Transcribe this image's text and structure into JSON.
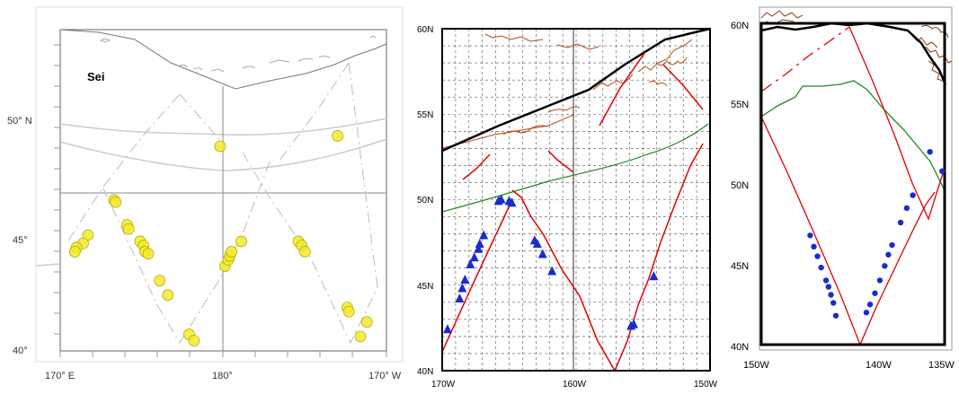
{
  "left_map": {
    "title": "Sei",
    "lat_labels": [
      "50° N",
      "45°",
      "40°"
    ],
    "lon_labels": [
      "170° E",
      "180°",
      "170° W"
    ],
    "colors": {
      "sighting": "#f2ea2e",
      "sighting_stroke": "#b9a900",
      "track": "#bbbbbb",
      "coast": "#777777"
    },
    "sightings": [
      {
        "lon": 179.8,
        "lat": 49.7
      },
      {
        "lon": -173.0,
        "lat": 50.2
      },
      {
        "lon": 173.3,
        "lat": 47.1
      },
      {
        "lon": 173.4,
        "lat": 47.0
      },
      {
        "lon": 171.7,
        "lat": 45.4
      },
      {
        "lon": 171.4,
        "lat": 45.0
      },
      {
        "lon": 171.0,
        "lat": 44.8
      },
      {
        "lon": 170.9,
        "lat": 44.6
      },
      {
        "lon": 174.1,
        "lat": 45.9
      },
      {
        "lon": 174.2,
        "lat": 45.7
      },
      {
        "lon": 174.9,
        "lat": 45.1
      },
      {
        "lon": 175.1,
        "lat": 44.9
      },
      {
        "lon": 175.2,
        "lat": 44.6
      },
      {
        "lon": 175.4,
        "lat": 44.5
      },
      {
        "lon": 176.1,
        "lat": 43.2
      },
      {
        "lon": 176.6,
        "lat": 42.5
      },
      {
        "lon": 177.9,
        "lat": 40.6
      },
      {
        "lon": 178.2,
        "lat": 40.3
      },
      {
        "lon": -179.9,
        "lat": 43.9
      },
      {
        "lon": -179.7,
        "lat": 44.2
      },
      {
        "lon": -179.6,
        "lat": 44.4
      },
      {
        "lon": -179.5,
        "lat": 44.6
      },
      {
        "lon": -178.9,
        "lat": 45.1
      },
      {
        "lon": -175.4,
        "lat": 45.1
      },
      {
        "lon": -175.2,
        "lat": 44.9
      },
      {
        "lon": -175.0,
        "lat": 44.6
      },
      {
        "lon": -172.4,
        "lat": 41.9
      },
      {
        "lon": -172.3,
        "lat": 41.7
      },
      {
        "lon": -171.2,
        "lat": 41.2
      },
      {
        "lon": -171.6,
        "lat": 40.5
      }
    ]
  },
  "mid_map": {
    "lat_labels": [
      "60N",
      "55N",
      "50N",
      "45N",
      "40N"
    ],
    "lon_labels": [
      "170W",
      "160W",
      "150W"
    ],
    "colors": {
      "track": "#e00000",
      "front": "#1f8a1f",
      "coast": "#a0400a",
      "sighting": "#1a2bd0"
    },
    "sightings": [
      {
        "lon": -169.6,
        "lat": 42.4
      },
      {
        "lon": -168.7,
        "lat": 44.2
      },
      {
        "lon": -168.5,
        "lat": 44.8
      },
      {
        "lon": -168.3,
        "lat": 45.3
      },
      {
        "lon": -167.9,
        "lat": 46.2
      },
      {
        "lon": -167.6,
        "lat": 46.6
      },
      {
        "lon": -167.3,
        "lat": 47.1
      },
      {
        "lon": -167.2,
        "lat": 47.4
      },
      {
        "lon": -166.9,
        "lat": 47.9
      },
      {
        "lon": -165.8,
        "lat": 49.9
      },
      {
        "lon": -165.6,
        "lat": 50.0
      },
      {
        "lon": -165.0,
        "lat": 49.9
      },
      {
        "lon": -164.8,
        "lat": 49.8
      },
      {
        "lon": -163.1,
        "lat": 47.6
      },
      {
        "lon": -162.9,
        "lat": 47.4
      },
      {
        "lon": -162.5,
        "lat": 46.8
      },
      {
        "lon": -161.8,
        "lat": 45.8
      },
      {
        "lon": -155.9,
        "lat": 42.6
      },
      {
        "lon": -155.7,
        "lat": 42.7
      },
      {
        "lon": -154.2,
        "lat": 45.5
      }
    ]
  },
  "right_map": {
    "lat_labels": [
      "60N",
      "55N",
      "50N",
      "45N",
      "40N"
    ],
    "lon_labels": [
      "150W",
      "140W",
      "135W"
    ],
    "colors": {
      "track": "#e00000",
      "front": "#1f8a1f",
      "coast": "#8a3a0a",
      "sighting": "#1a2bd0"
    },
    "sightings": [
      {
        "lon": -146.0,
        "lat": 46.8
      },
      {
        "lon": -145.7,
        "lat": 46.1
      },
      {
        "lon": -145.4,
        "lat": 45.5
      },
      {
        "lon": -145.1,
        "lat": 44.8
      },
      {
        "lon": -144.7,
        "lat": 44.0
      },
      {
        "lon": -144.5,
        "lat": 43.6
      },
      {
        "lon": -144.3,
        "lat": 43.1
      },
      {
        "lon": -144.1,
        "lat": 42.6
      },
      {
        "lon": -143.9,
        "lat": 41.8
      },
      {
        "lon": -141.4,
        "lat": 42.0
      },
      {
        "lon": -141.1,
        "lat": 42.5
      },
      {
        "lon": -140.7,
        "lat": 43.2
      },
      {
        "lon": -140.3,
        "lat": 44.0
      },
      {
        "lon": -139.9,
        "lat": 44.9
      },
      {
        "lon": -139.6,
        "lat": 45.6
      },
      {
        "lon": -139.3,
        "lat": 46.2
      },
      {
        "lon": -138.6,
        "lat": 47.6
      },
      {
        "lon": -138.1,
        "lat": 48.5
      },
      {
        "lon": -137.6,
        "lat": 49.3
      },
      {
        "lon": -136.2,
        "lat": 52.0
      },
      {
        "lon": -135.2,
        "lat": 50.8
      }
    ]
  }
}
